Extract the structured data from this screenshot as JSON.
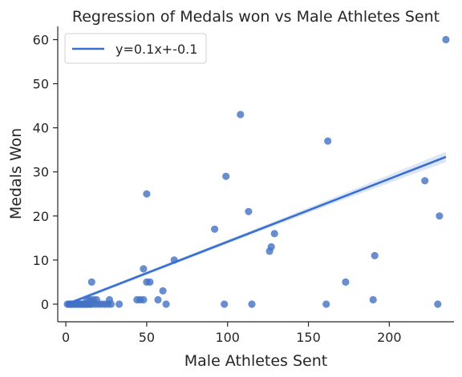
{
  "chart_data": {
    "type": "scatter",
    "title": "Regression of Medals won vs Male Athletes Sent",
    "xlabel": "Male Athletes Sent",
    "ylabel": "Medals Won",
    "xlim": [
      -5,
      240
    ],
    "ylim": [
      -4,
      63
    ],
    "xticks": [
      0,
      50,
      100,
      150,
      200
    ],
    "yticks": [
      0,
      10,
      20,
      30,
      40,
      50,
      60
    ],
    "grid": false,
    "legend_position": "top-left",
    "colors": {
      "points": "#4472c4",
      "line": "#3a6fd0",
      "band": "#c5d5f0",
      "axis": "#262626"
    },
    "regression": {
      "label": "y=0.1x+-0.1",
      "x": [
        0,
        235
      ],
      "y": [
        -0.1,
        33.4
      ]
    },
    "points": [
      [
        1,
        0
      ],
      [
        2,
        0
      ],
      [
        3,
        0
      ],
      [
        4,
        0
      ],
      [
        5,
        0
      ],
      [
        6,
        0
      ],
      [
        7,
        0
      ],
      [
        8,
        0
      ],
      [
        9,
        0
      ],
      [
        10,
        0
      ],
      [
        11,
        0
      ],
      [
        12,
        0
      ],
      [
        13,
        0
      ],
      [
        14,
        0
      ],
      [
        15,
        0
      ],
      [
        16,
        0
      ],
      [
        3,
        0
      ],
      [
        6,
        0
      ],
      [
        9,
        0
      ],
      [
        12,
        0
      ],
      [
        13,
        1
      ],
      [
        15,
        1
      ],
      [
        16,
        5
      ],
      [
        17,
        1
      ],
      [
        18,
        0
      ],
      [
        19,
        1
      ],
      [
        20,
        0
      ],
      [
        22,
        0
      ],
      [
        24,
        0
      ],
      [
        26,
        0
      ],
      [
        27,
        1
      ],
      [
        28,
        0
      ],
      [
        33,
        0
      ],
      [
        44,
        1
      ],
      [
        46,
        1
      ],
      [
        48,
        1
      ],
      [
        48,
        8
      ],
      [
        50,
        5
      ],
      [
        50,
        25
      ],
      [
        52,
        5
      ],
      [
        57,
        1
      ],
      [
        60,
        3
      ],
      [
        62,
        0
      ],
      [
        67,
        10
      ],
      [
        92,
        17
      ],
      [
        98,
        0
      ],
      [
        99,
        29
      ],
      [
        108,
        43
      ],
      [
        113,
        21
      ],
      [
        115,
        0
      ],
      [
        126,
        12
      ],
      [
        127,
        13
      ],
      [
        129,
        16
      ],
      [
        161,
        0
      ],
      [
        162,
        37
      ],
      [
        173,
        5
      ],
      [
        190,
        1
      ],
      [
        191,
        11
      ],
      [
        222,
        28
      ],
      [
        230,
        0
      ],
      [
        231,
        20
      ],
      [
        235,
        60
      ]
    ]
  }
}
